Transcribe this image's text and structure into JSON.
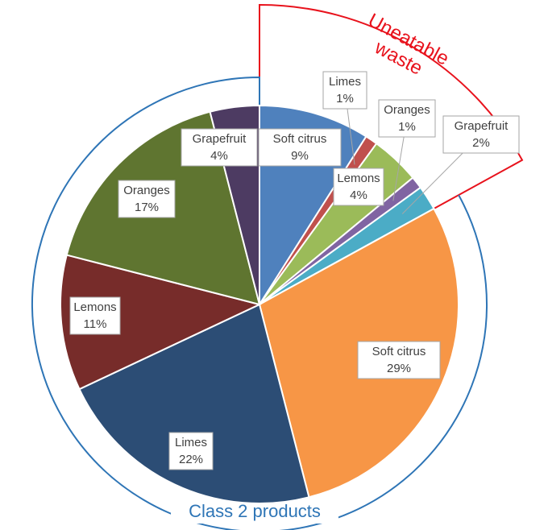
{
  "chart_data": {
    "type": "pie",
    "categories": [
      "Soft citrus",
      "Limes",
      "Lemons",
      "Oranges",
      "Grapefruit",
      "Soft citrus",
      "Limes",
      "Lemons",
      "Oranges",
      "Grapefruit"
    ],
    "values": [
      9,
      1,
      4,
      1,
      2,
      29,
      22,
      11,
      17,
      4
    ],
    "value_labels": [
      "9%",
      "1%",
      "4%",
      "1%",
      "2%",
      "29%",
      "22%",
      "11%",
      "17%",
      "4%"
    ],
    "colors": [
      "#4f81bd",
      "#c0504d",
      "#9bbb59",
      "#8064a2",
      "#4bacc6",
      "#f79646",
      "#2c4d75",
      "#772c2a",
      "#5f7530",
      "#4d3b62"
    ],
    "waste_annotation": [
      "Uneatable",
      "waste"
    ],
    "waste_color": "#e8121c",
    "class_annotation": "Class 2 products",
    "class_color": "#2e75b6"
  }
}
